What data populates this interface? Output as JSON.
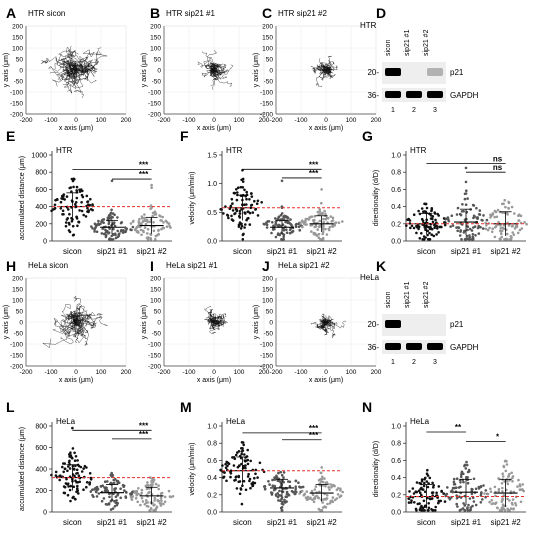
{
  "letters": [
    "A",
    "B",
    "C",
    "D",
    "E",
    "F",
    "G",
    "H",
    "I",
    "J",
    "K",
    "L",
    "M",
    "N"
  ],
  "tracks": [
    {
      "title": "HTR sicon",
      "spread": 1.0,
      "seed": 11,
      "n": 38
    },
    {
      "title": "HTR sip21 #1",
      "spread": 0.55,
      "seed": 23,
      "n": 30
    },
    {
      "title": "HTR sip21 #2",
      "spread": 0.45,
      "seed": 37,
      "n": 30
    },
    {
      "title": "HeLa sicon",
      "spread": 0.9,
      "seed": 41,
      "n": 34
    },
    {
      "title": "HeLa sip21 #1",
      "spread": 0.5,
      "seed": 53,
      "n": 28
    },
    {
      "title": "HeLa sip21 #2",
      "spread": 0.42,
      "seed": 67,
      "n": 28
    }
  ],
  "track_axes": {
    "xlabel": "x axis (μm)",
    "ylabel": "y axis (μm)",
    "xticks": [
      "-200",
      "-100",
      "0",
      "100",
      "200"
    ],
    "yticks": [
      "200",
      "150",
      "100",
      "50",
      "0",
      "-50",
      "-100",
      "-150",
      "-200"
    ],
    "lim": [
      -200,
      200
    ]
  },
  "blots": [
    {
      "cell": "HTR",
      "lanes": [
        "sicon",
        "sip21 #1",
        "sip21 #2"
      ],
      "bands": [
        "p21",
        "GAPDH"
      ],
      "markers": [
        "20-",
        "36-"
      ],
      "numbers": [
        "1",
        "2",
        "3"
      ],
      "p21": [
        1.0,
        0.0,
        0.25
      ]
    },
    {
      "cell": "HeLa",
      "lanes": [
        "sicon",
        "sip21 #1",
        "sip21 #2"
      ],
      "bands": [
        "p21",
        "GAPDH"
      ],
      "markers": [
        "20-",
        "36-"
      ],
      "numbers": [
        "1",
        "2",
        "3"
      ],
      "p21": [
        1.0,
        0.0,
        0.0
      ]
    }
  ],
  "chart_data": [
    {
      "type": "scatter",
      "title": "HTR",
      "ylabel": "accumulated distance (μm)",
      "categories": [
        "sicon",
        "sip21 #1",
        "sip21 #2"
      ],
      "ylim": [
        0,
        1000
      ],
      "yticks": [
        0,
        200,
        400,
        600,
        800,
        1000
      ],
      "medians": [
        400,
        160,
        180
      ],
      "sd": [
        160,
        80,
        95
      ],
      "ref": 400,
      "sig": [
        {
          "from": 0,
          "to": 2,
          "label": "***",
          "y": 830
        },
        {
          "from": 1,
          "to": 2,
          "label": "***",
          "y": 720
        }
      ],
      "outliers": [
        [],
        [
          700
        ],
        [
          620,
          650
        ]
      ]
    },
    {
      "type": "scatter",
      "title": "HTR",
      "ylabel": "velocity (μm/min)",
      "categories": [
        "sicon",
        "sip21 #1",
        "sip21 #2"
      ],
      "ylim": [
        0,
        1.5
      ],
      "yticks": [
        0.0,
        0.5,
        1.0,
        1.5
      ],
      "medians": [
        0.58,
        0.24,
        0.3
      ],
      "sd": [
        0.22,
        0.12,
        0.14
      ],
      "ref": 0.58,
      "sig": [
        {
          "from": 0,
          "to": 2,
          "label": "***",
          "y": 1.25
        },
        {
          "from": 1,
          "to": 2,
          "label": "***",
          "y": 1.1
        }
      ],
      "outliers": [
        [],
        [
          1.05
        ],
        [
          0.9
        ]
      ]
    },
    {
      "type": "scatter",
      "title": "HTR",
      "ylabel": "directionality (d/D)",
      "categories": [
        "sicon",
        "sip21 #1",
        "sip21 #2"
      ],
      "ylim": [
        0,
        1.0
      ],
      "yticks": [
        0.0,
        0.2,
        0.4,
        0.6,
        0.8,
        1.0
      ],
      "medians": [
        0.2,
        0.22,
        0.2
      ],
      "sd": [
        0.12,
        0.15,
        0.14
      ],
      "ref": 0.2,
      "sig": [
        {
          "from": 0,
          "to": 2,
          "label": "ns",
          "y": 0.9
        },
        {
          "from": 1,
          "to": 2,
          "label": "ns",
          "y": 0.8
        }
      ],
      "outliers": [
        [],
        [
          0.85
        ],
        []
      ]
    },
    {
      "type": "scatter",
      "title": "HeLa",
      "ylabel": "accumulated distance (μm)",
      "categories": [
        "sicon",
        "sip21 #1",
        "sip21 #2"
      ],
      "ylim": [
        0,
        800
      ],
      "yticks": [
        0,
        200,
        400,
        600,
        800
      ],
      "medians": [
        320,
        180,
        150
      ],
      "sd": [
        120,
        75,
        80
      ],
      "ref": 320,
      "sig": [
        {
          "from": 0,
          "to": 2,
          "label": "***",
          "y": 760
        },
        {
          "from": 1,
          "to": 2,
          "label": "***",
          "y": 680
        }
      ],
      "outliers": [
        [
          780
        ],
        [],
        []
      ]
    },
    {
      "type": "scatter",
      "title": "HeLa",
      "ylabel": "velocity (μm/min)",
      "categories": [
        "sicon",
        "sip21 #1",
        "sip21 #2"
      ],
      "ylim": [
        0,
        1.0
      ],
      "yticks": [
        0.0,
        0.2,
        0.4,
        0.6,
        0.8,
        1.0
      ],
      "medians": [
        0.48,
        0.28,
        0.22
      ],
      "sd": [
        0.16,
        0.1,
        0.1
      ],
      "ref": 0.48,
      "sig": [
        {
          "from": 0,
          "to": 2,
          "label": "***",
          "y": 0.92
        },
        {
          "from": 1,
          "to": 2,
          "label": "***",
          "y": 0.84
        }
      ],
      "outliers": [
        [],
        [],
        []
      ]
    },
    {
      "type": "scatter",
      "title": "HeLa",
      "ylabel": "directionality (d/D)",
      "categories": [
        "sicon",
        "sip21 #1",
        "sip21 #2"
      ],
      "ylim": [
        0,
        1.0
      ],
      "yticks": [
        0.0,
        0.2,
        0.4,
        0.6,
        0.8,
        1.0
      ],
      "medians": [
        0.18,
        0.23,
        0.22
      ],
      "sd": [
        0.14,
        0.15,
        0.16
      ],
      "ref": 0.18,
      "sig": [
        {
          "from": 0,
          "to": 1,
          "label": "**",
          "y": 0.93
        },
        {
          "from": 1,
          "to": 2,
          "label": "*",
          "y": 0.82
        }
      ],
      "outliers": [
        [],
        [],
        []
      ]
    }
  ],
  "colors": {
    "dots_sicon": "#111111",
    "dots_sip1": "#555555",
    "dots_sip2": "#999999",
    "ref": "#e8312c",
    "blot_bg": "#eeeeee"
  }
}
